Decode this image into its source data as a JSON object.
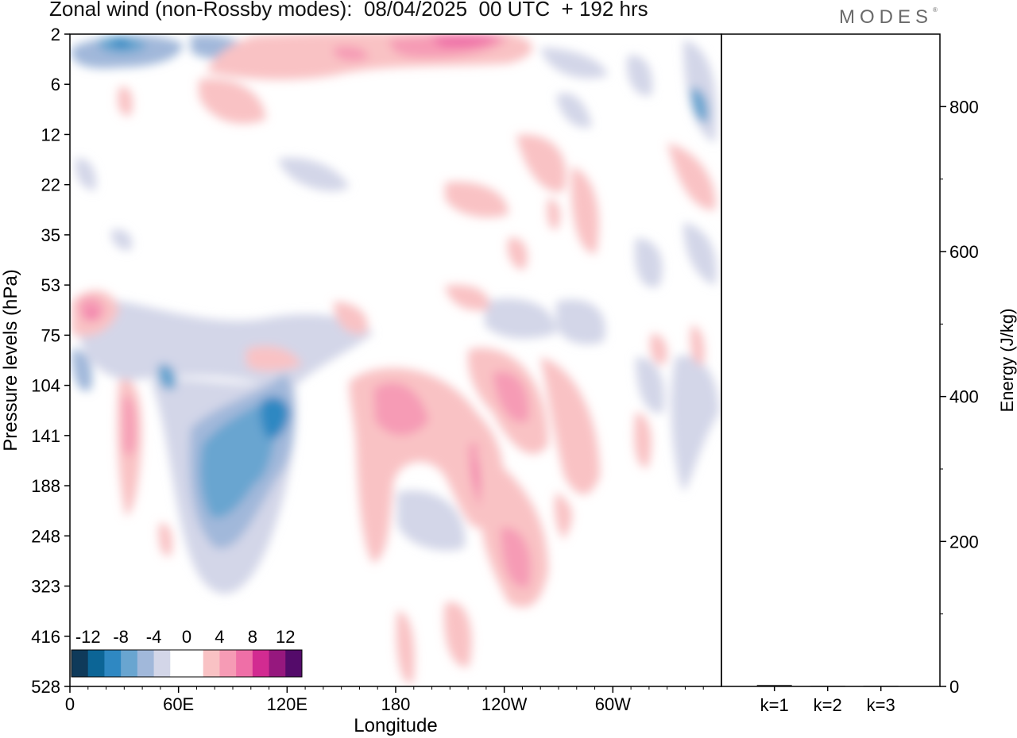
{
  "header": {
    "title": "Zonal wind (non-Rossby modes):  08/04/2025  00 UTC  + 192 hrs",
    "brand": "MODES",
    "brand_mark": "®"
  },
  "chart_data": [
    {
      "type": "heatmap",
      "xlabel": "Longitude",
      "ylabel": "Pressure levels (hPa)",
      "x_ticks": [
        "0",
        "60E",
        "120E",
        "180",
        "120W",
        "60W"
      ],
      "y_ticks": [
        "2",
        "6",
        "12",
        "22",
        "35",
        "53",
        "75",
        "104",
        "141",
        "188",
        "248",
        "323",
        "416",
        "528"
      ],
      "x_range_deg": [
        0,
        360
      ],
      "colorbar": {
        "labels": [
          "-12",
          "-8",
          "-4",
          "0",
          "4",
          "8",
          "12"
        ],
        "colors": [
          "#0f3a5a",
          "#0c6596",
          "#2f88c2",
          "#69a5d0",
          "#a1b8da",
          "#d3d6e8",
          "#ffffff",
          "#ffffff",
          "#f9c2c4",
          "#f69bb5",
          "#ef6fa7",
          "#d22b91",
          "#96187e",
          "#540b6a"
        ]
      },
      "features": [
        {
          "kind": "jet",
          "sign": "negative",
          "lon": 35,
          "level": 2,
          "peak": -10
        },
        {
          "kind": "jet",
          "sign": "negative",
          "lon": 95,
          "level": 141,
          "peak": -10
        },
        {
          "kind": "jet",
          "sign": "negative",
          "lon": 115,
          "level": 141,
          "peak": -12
        },
        {
          "kind": "jet",
          "sign": "positive",
          "lon": 210,
          "level": 2,
          "peak": 7
        },
        {
          "kind": "jet",
          "sign": "positive",
          "lon": 225,
          "level": 141,
          "peak": 9
        },
        {
          "kind": "jet",
          "sign": "positive",
          "lon": 240,
          "level": 248,
          "peak": 7
        },
        {
          "kind": "jet",
          "sign": "positive",
          "lon": 235,
          "level": 104,
          "peak": 7
        },
        {
          "kind": "jet",
          "sign": "positive",
          "lon": 15,
          "level": 75,
          "peak": 7
        }
      ]
    },
    {
      "type": "bar",
      "categories": [
        "k=1",
        "k=2",
        "k=3"
      ],
      "values": [
        2,
        1,
        1
      ],
      "ylabel": "Energy (J/kg)",
      "y_ticks": [
        "0",
        "200",
        "400",
        "600",
        "800"
      ],
      "ylim": [
        0,
        900
      ]
    }
  ]
}
